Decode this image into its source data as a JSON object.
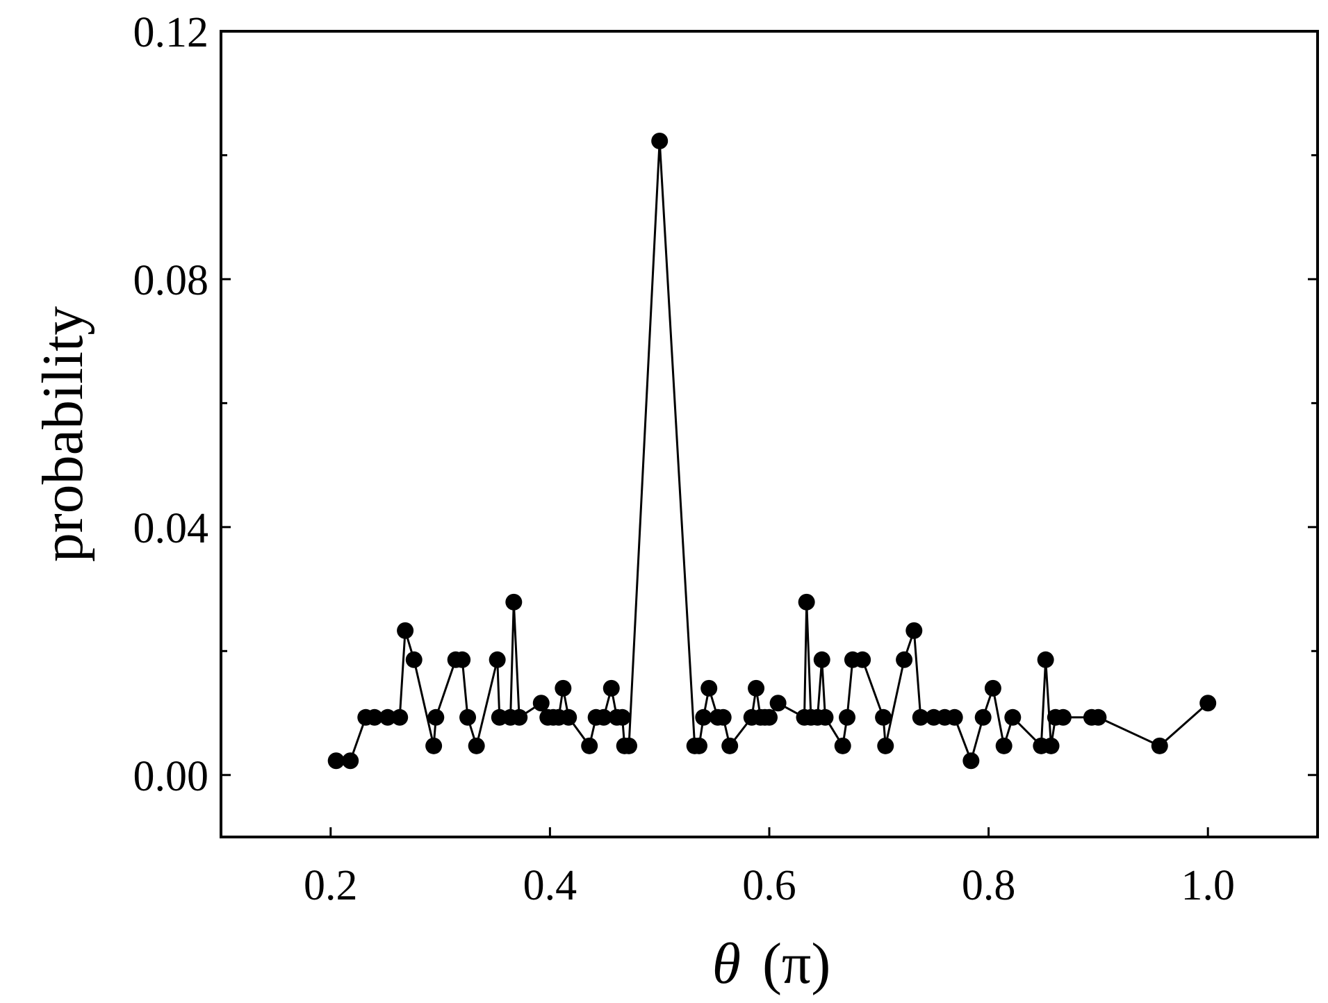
{
  "chart_data": {
    "type": "line",
    "title": "",
    "xlabel": {
      "symbol": "θ",
      "unit": "(π)"
    },
    "ylabel": "probability",
    "xlim": [
      0.1,
      1.1
    ],
    "ylim": [
      -0.01,
      0.12
    ],
    "x_ticks": [
      0.2,
      0.4,
      0.6,
      0.8,
      1.0
    ],
    "x_tick_labels": [
      "0.2",
      "0.4",
      "0.6",
      "0.8",
      "1.0"
    ],
    "y_ticks": [
      0.0,
      0.04,
      0.08,
      0.12
    ],
    "y_tick_labels": [
      "0.00",
      "0.04",
      "0.08",
      "0.12"
    ],
    "y_minor_ticks": [
      0.02,
      0.06,
      0.1
    ],
    "grid": false,
    "legend": "none",
    "marker": "filled-circle",
    "color": "#000000",
    "series": [
      {
        "x": [
          0.205,
          0.218,
          0.232,
          0.24,
          0.252,
          0.263,
          0.268,
          0.276,
          0.294,
          0.296,
          0.314,
          0.32,
          0.325,
          0.333,
          0.352,
          0.354,
          0.364,
          0.367,
          0.372,
          0.392,
          0.398,
          0.403,
          0.408,
          0.412,
          0.417,
          0.436,
          0.442,
          0.449,
          0.456,
          0.461,
          0.466,
          0.468,
          0.472,
          0.5,
          0.532,
          0.536,
          0.54,
          0.545,
          0.553,
          0.558,
          0.564,
          0.584,
          0.588,
          0.592,
          0.596,
          0.6,
          0.608,
          0.632,
          0.634,
          0.638,
          0.644,
          0.648,
          0.651,
          0.667,
          0.671,
          0.676,
          0.685,
          0.704,
          0.706,
          0.723,
          0.732,
          0.738,
          0.75,
          0.76,
          0.769,
          0.784,
          0.795,
          0.804,
          0.814,
          0.822,
          0.848,
          0.852,
          0.857,
          0.861,
          0.868,
          0.894,
          0.9,
          0.956,
          1.0
        ],
        "y": [
          0.0023,
          0.0023,
          0.0093,
          0.0093,
          0.0093,
          0.0093,
          0.0233,
          0.0186,
          0.0047,
          0.0093,
          0.0186,
          0.0186,
          0.0093,
          0.0047,
          0.0186,
          0.0093,
          0.0093,
          0.0279,
          0.0093,
          0.0116,
          0.0093,
          0.0093,
          0.0093,
          0.014,
          0.0093,
          0.0047,
          0.0093,
          0.0093,
          0.014,
          0.0093,
          0.0093,
          0.0047,
          0.0047,
          0.1023,
          0.0047,
          0.0047,
          0.0093,
          0.014,
          0.0093,
          0.0093,
          0.0047,
          0.0093,
          0.014,
          0.0093,
          0.0093,
          0.0093,
          0.0116,
          0.0093,
          0.0279,
          0.0093,
          0.0093,
          0.0186,
          0.0093,
          0.0047,
          0.0093,
          0.0186,
          0.0186,
          0.0093,
          0.0047,
          0.0186,
          0.0233,
          0.0093,
          0.0093,
          0.0093,
          0.0093,
          0.0023,
          0.0093,
          0.014,
          0.0047,
          0.0093,
          0.0047,
          0.0186,
          0.0047,
          0.0093,
          0.0093,
          0.0093,
          0.0093,
          0.0047,
          0.0116
        ]
      }
    ]
  }
}
